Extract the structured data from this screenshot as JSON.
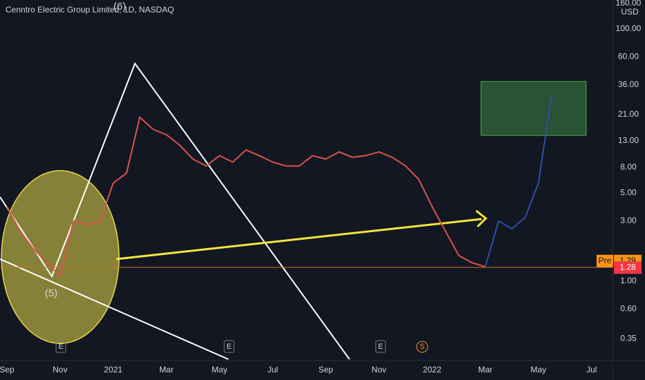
{
  "chart_data": {
    "type": "line",
    "title": "Cenntro Electric Group Limited, 1D, NASDAQ",
    "currency": "USD",
    "log_scale": true,
    "grid": false,
    "categories": [
      "Sep",
      null,
      null,
      null,
      "Nov",
      null,
      null,
      null,
      "2021",
      null,
      null,
      null,
      "Mar",
      null,
      null,
      null,
      "May",
      null,
      null,
      null,
      "Jul",
      null,
      null,
      null,
      "Sep",
      null,
      null,
      null,
      "Nov",
      null,
      null,
      null,
      "2022",
      null,
      null,
      null,
      "Mar",
      null,
      null,
      null,
      "May",
      null,
      null,
      null,
      "Jul",
      null
    ],
    "series": [
      {
        "color": "#d9534f",
        "values": [
          3.9,
          2.5,
          1.8,
          1.4,
          1.1,
          3.0,
          2.8,
          3.0,
          6.0,
          7.2,
          20,
          16,
          14.5,
          12,
          9.3,
          8.2,
          9.9,
          8.8,
          11,
          9.9,
          8.8,
          8.2,
          8.2,
          9.9,
          9.3,
          10.6,
          9.6,
          9.9,
          10.6,
          9.6,
          8.2,
          6.4,
          3.9,
          2.5,
          1.6,
          1.4,
          1.3,
          null,
          null,
          null,
          null,
          null,
          null,
          null,
          null,
          null
        ]
      },
      {
        "color": "#2f4fa8",
        "values": [
          null,
          null,
          null,
          null,
          null,
          null,
          null,
          null,
          null,
          null,
          null,
          null,
          null,
          null,
          null,
          null,
          null,
          null,
          null,
          null,
          null,
          null,
          null,
          null,
          null,
          null,
          null,
          null,
          null,
          null,
          null,
          null,
          null,
          null,
          null,
          null,
          1.3,
          3.0,
          2.6,
          3.2,
          6.0,
          30,
          null,
          null,
          null,
          null
        ]
      }
    ],
    "ylim": [
      0.24,
      170
    ],
    "yticks": [
      {
        "value": 160,
        "label": "160.00"
      },
      {
        "value": 100,
        "label": "100.00"
      },
      {
        "value": 60,
        "label": "60.00"
      },
      {
        "value": 36,
        "label": "36.00"
      },
      {
        "value": 21,
        "label": "21.00"
      },
      {
        "value": 13,
        "label": "13.00"
      },
      {
        "value": 8,
        "label": "8.00"
      },
      {
        "value": 5,
        "label": "5.00"
      },
      {
        "value": 3,
        "label": "3.00"
      },
      {
        "value": 1,
        "label": "1.00"
      },
      {
        "value": 0.6,
        "label": "0.60"
      },
      {
        "value": 0.35,
        "label": "0.35"
      }
    ],
    "wave_labels": [
      "(6)",
      "(5)"
    ],
    "event_markers": [
      "E",
      "E",
      "E",
      "S"
    ],
    "price_tags": [
      {
        "label": "Pre",
        "value": 1.29
      },
      {
        "value": 1.28
      }
    ]
  }
}
